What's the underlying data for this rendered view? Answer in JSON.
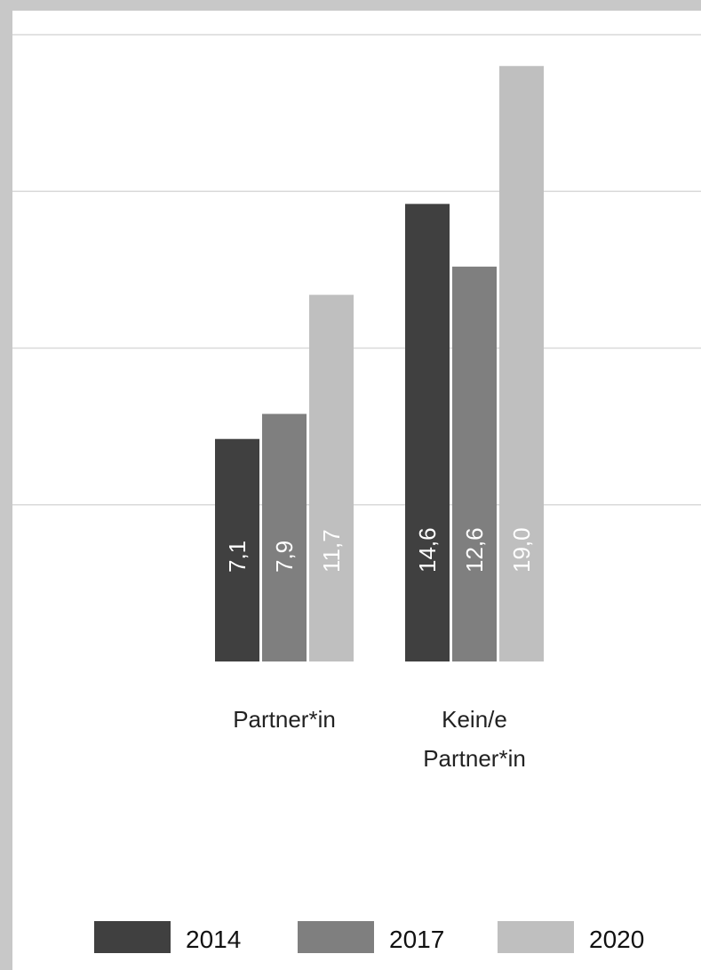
{
  "chart_data": {
    "type": "bar",
    "categories": [
      [
        "Partner*in"
      ],
      [
        "Kein/e",
        "Partner*in"
      ]
    ],
    "series": [
      {
        "name": "2014",
        "values": [
          7.1,
          14.6
        ],
        "labels": [
          "7,1",
          "14,6"
        ],
        "color": "#404040"
      },
      {
        "name": "2017",
        "values": [
          7.9,
          12.6
        ],
        "labels": [
          "7,9",
          "12,6"
        ],
        "color": "#7f7f7f"
      },
      {
        "name": "2020",
        "values": [
          11.7,
          19.0
        ],
        "labels": [
          "11,7",
          "19,0"
        ],
        "color": "#bfbfbf"
      }
    ],
    "ylim": [
      0,
      20
    ],
    "gridlines": true,
    "legend": "bottom"
  }
}
